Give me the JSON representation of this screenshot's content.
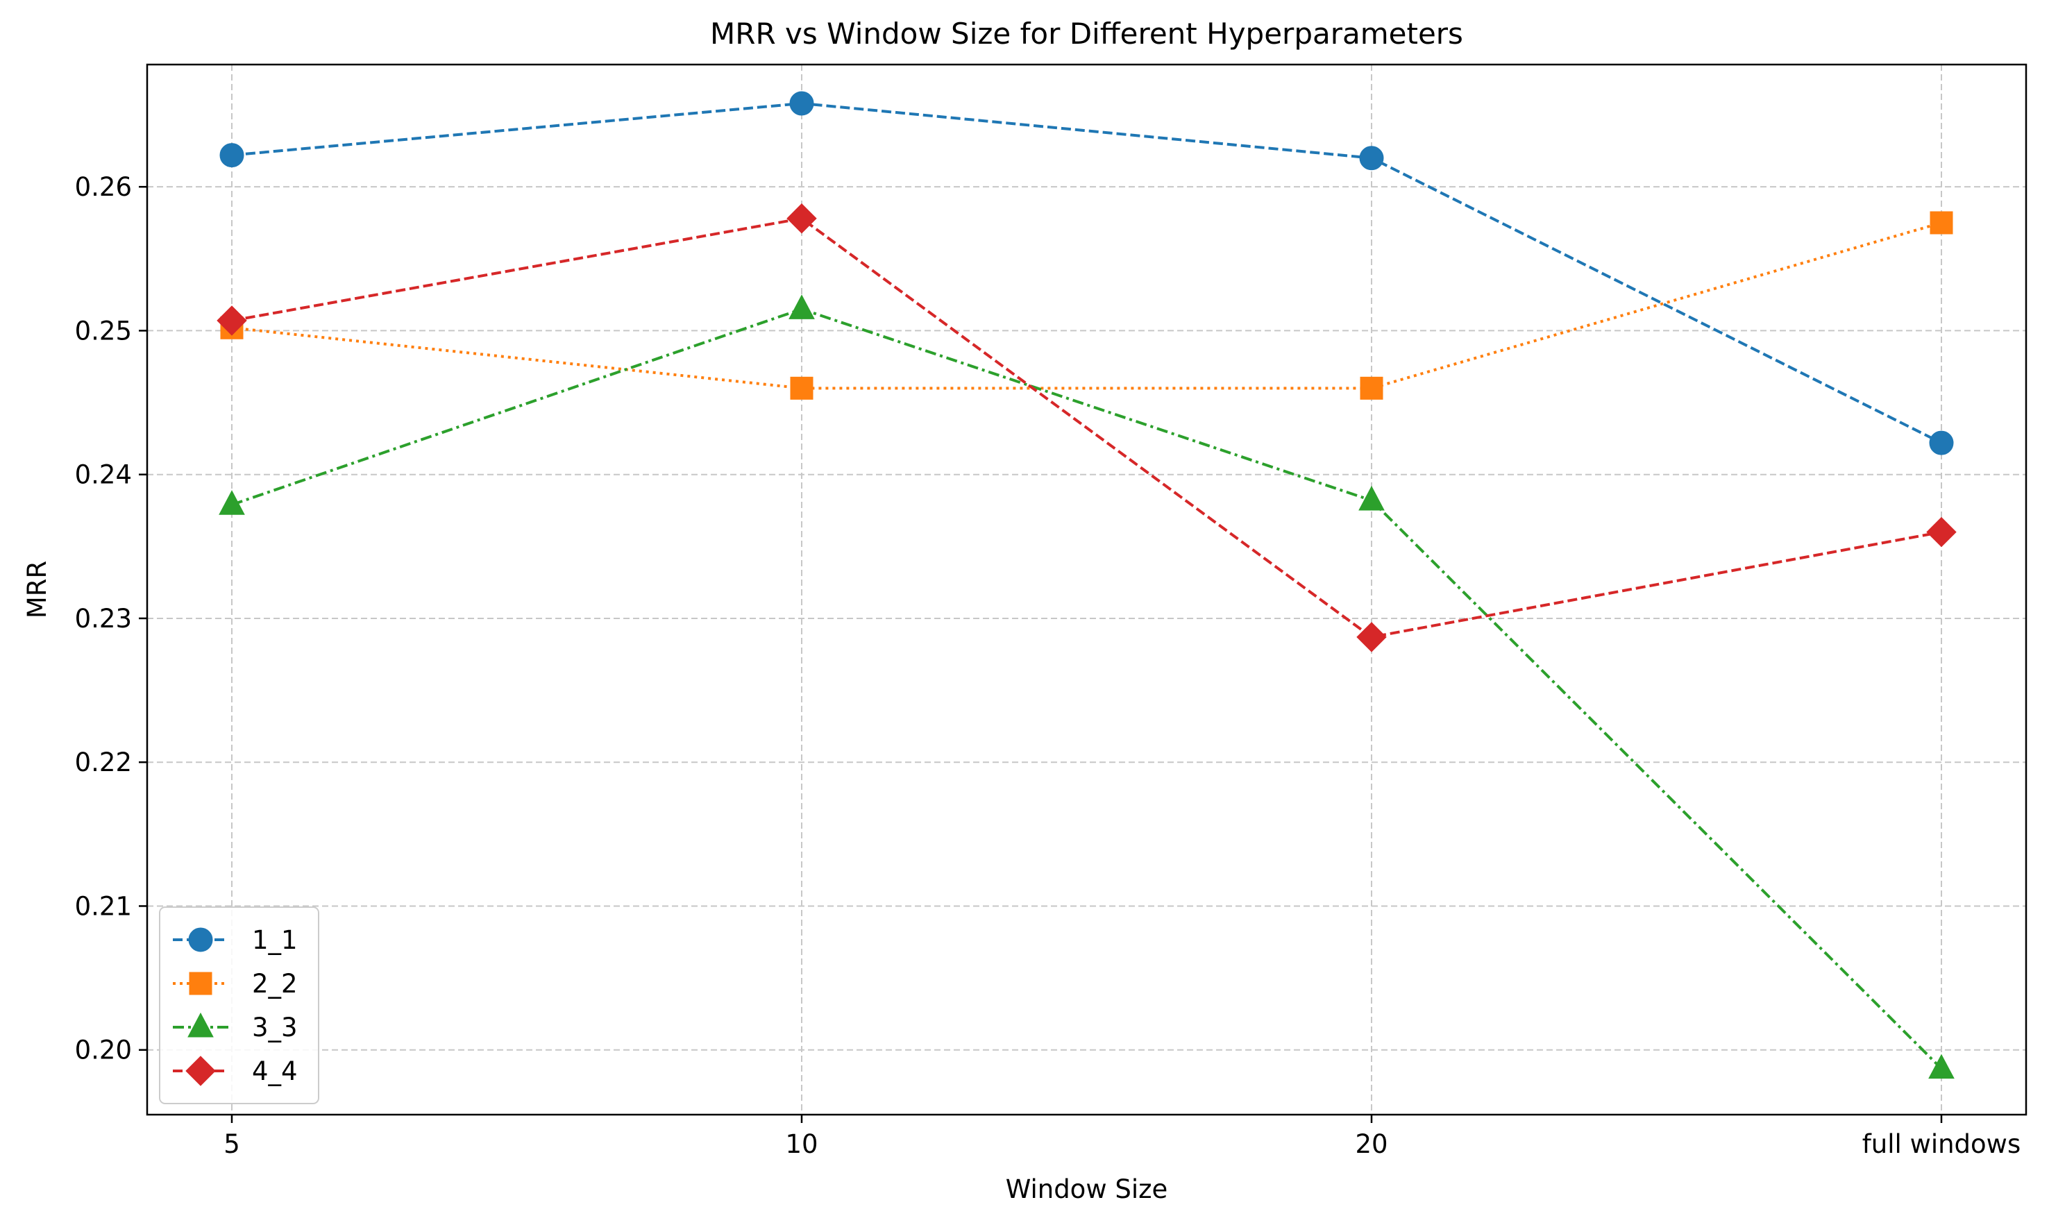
{
  "chart_data": {
    "type": "line",
    "title": "MRR vs Window Size for Different Hyperparameters",
    "xlabel": "Window Size",
    "ylabel": "MRR",
    "categories": [
      "5",
      "10",
      "20",
      "full windows"
    ],
    "ylim": [
      0.1955,
      0.2685
    ],
    "yticks": [
      "0.20",
      "0.21",
      "0.22",
      "0.23",
      "0.24",
      "0.25",
      "0.26"
    ],
    "grid": true,
    "legend_position": "lower-left",
    "series": [
      {
        "name": "1_1",
        "values": [
          0.2622,
          0.2658,
          0.262,
          0.2422
        ],
        "color": "#1f77b4",
        "linestyle": "dashed",
        "marker": "circle"
      },
      {
        "name": "2_2",
        "values": [
          0.2502,
          0.246,
          0.246,
          0.2575
        ],
        "color": "#ff7f0e",
        "linestyle": "dotted",
        "marker": "square"
      },
      {
        "name": "3_3",
        "values": [
          0.2379,
          0.2515,
          0.2382,
          0.1987
        ],
        "color": "#2ca02c",
        "linestyle": "dashdot",
        "marker": "triangle"
      },
      {
        "name": "4_4",
        "values": [
          0.2507,
          0.2578,
          0.2287,
          0.236
        ],
        "color": "#d62728",
        "linestyle": "dashed",
        "marker": "diamond"
      }
    ]
  }
}
